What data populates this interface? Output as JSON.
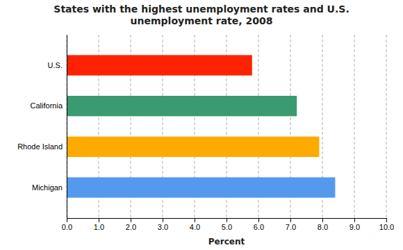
{
  "chart_data": {
    "type": "bar",
    "orientation": "horizontal",
    "title": "States with the highest unemployment rates and U.S.\nunemployment rate, 2008",
    "x_label": "Percent",
    "categories": [
      "Michigan",
      "Rhode Island",
      "California",
      "U.S."
    ],
    "values": [
      8.4,
      7.9,
      7.2,
      5.8
    ],
    "colors": [
      "#5599EE",
      "#FFAA00",
      "#3A9A70",
      "#FF2200"
    ],
    "xlim": [
      0.0,
      10.0
    ],
    "xticks": [
      {
        "value": 0.0,
        "label": "0.0"
      },
      {
        "value": 1.0,
        "label": "1.0"
      },
      {
        "value": 2.0,
        "label": "2.0"
      },
      {
        "value": 3.0,
        "label": "3.0"
      },
      {
        "value": 4.0,
        "label": "4.0"
      },
      {
        "value": 5.0,
        "label": "5.0"
      },
      {
        "value": 6.0,
        "label": "6.0"
      },
      {
        "value": 7.0,
        "label": "7.0"
      },
      {
        "value": 8.0,
        "label": "8.0"
      },
      {
        "value": 9.0,
        "label": "9.0"
      },
      {
        "value": 10.0,
        "label": "10.0"
      }
    ],
    "grid": true
  }
}
